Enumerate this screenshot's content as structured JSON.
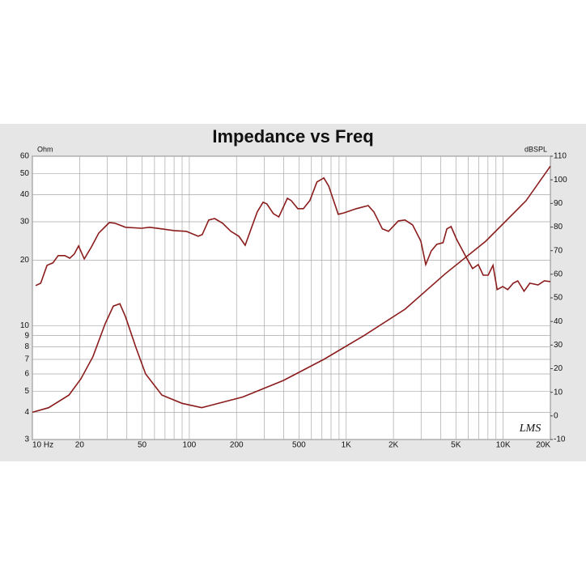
{
  "chart_data": {
    "type": "line",
    "title": "Impedance vs Freq",
    "ylabel": "Ohm",
    "y2label": "dBSPL",
    "watermark": "LMS",
    "xscale": "log",
    "yscale": "log",
    "grid": true,
    "xlim": [
      10,
      20000
    ],
    "xticks": [
      {
        "value": 10,
        "label": "10 Hz"
      },
      20,
      50,
      100,
      200,
      500,
      {
        "value": 1000,
        "label": "1K"
      },
      {
        "value": 2000,
        "label": "2K"
      },
      {
        "value": 5000,
        "label": "5K"
      },
      {
        "value": 10000,
        "label": "10K"
      },
      {
        "value": 20000,
        "label": "20K"
      }
    ],
    "xminorticks": [
      30,
      40,
      60,
      70,
      80,
      90,
      300,
      400,
      600,
      700,
      800,
      900,
      3000,
      4000,
      6000,
      7000,
      8000,
      9000
    ],
    "ylim": [
      3,
      60
    ],
    "yticks": [
      3,
      4,
      5,
      6,
      7,
      8,
      9,
      10,
      20,
      30,
      40,
      50,
      60
    ],
    "y2lim": [
      -10,
      110
    ],
    "y2ticks": [
      -10,
      0,
      10,
      20,
      30,
      40,
      50,
      60,
      70,
      80,
      90,
      100,
      110
    ],
    "series": [
      {
        "color": "#8b1c1c",
        "x": [
          10,
          12.7,
          17.1,
          20.4,
          24.3,
          29.1,
          32.8,
          36.1,
          39.2,
          45.8,
          52.7,
          66.9,
          89.9,
          120,
          219,
          397,
          720,
          1300,
          2370,
          4270,
          7730,
          14000,
          20000
        ],
        "values": [
          4.0,
          4.2,
          4.8,
          5.7,
          7.2,
          10.2,
          12.3,
          12.6,
          11,
          7.9,
          6.0,
          4.8,
          4.4,
          4.2,
          4.7,
          5.6,
          7.0,
          9.0,
          11.9,
          17.3,
          24.4,
          37.5,
          54
        ]
      },
      {
        "color": "#8b1c1c",
        "axis": "y2",
        "x": [
          10.5,
          11.3,
          12.4,
          13.5,
          14.6,
          16.1,
          17.3,
          18.5,
          19.7,
          21.4,
          23.8,
          26.5,
          30.9,
          33.6,
          39.2,
          49.6,
          55.9,
          66.9,
          80,
          95.6,
          114,
          121,
          133,
          145,
          163,
          184,
          207,
          227,
          271,
          295,
          312,
          343,
          372,
          422,
          446,
          491,
          533,
          586,
          651,
          720,
          773,
          890,
          968,
          1160,
          1380,
          1500,
          1700,
          1860,
          2150,
          2370,
          2650,
          2990,
          3210,
          3480,
          3780,
          4140,
          4380,
          4660,
          5060,
          5890,
          6390,
          6940,
          7460,
          8020,
          8620,
          9160,
          9940,
          10700,
          11600,
          12400,
          13600,
          14800,
          16700,
          18300,
          20000
        ],
        "values": [
          55.2,
          56.2,
          63.8,
          64.8,
          67.9,
          67.9,
          66.8,
          68.6,
          72,
          66.5,
          71.6,
          77.5,
          81.9,
          81.6,
          79.9,
          79.5,
          79.9,
          79.2,
          78.5,
          78.2,
          76.1,
          76.8,
          83,
          83.6,
          81.6,
          78.2,
          76.1,
          72.3,
          86.4,
          90.5,
          89.8,
          85.7,
          84.3,
          92.2,
          91.2,
          87.8,
          87.8,
          91.2,
          99.1,
          100.8,
          97.4,
          85.4,
          86,
          87.8,
          89.1,
          86.4,
          79.2,
          78.2,
          82.6,
          83,
          80.9,
          74,
          64.1,
          69.9,
          72.7,
          73.4,
          79.2,
          80.2,
          74.7,
          66.5,
          62.4,
          64.1,
          59.6,
          59.6,
          63.8,
          53.5,
          54.8,
          53.5,
          56.2,
          57.2,
          52.8,
          56.2,
          55.5,
          57.2,
          56.9
        ]
      }
    ]
  }
}
